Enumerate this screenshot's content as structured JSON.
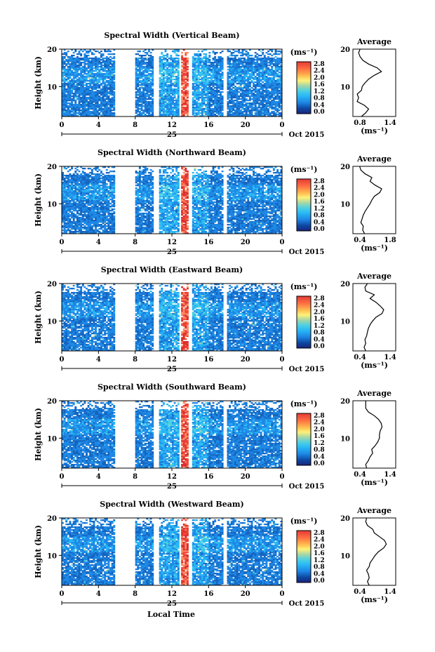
{
  "panels": [
    {
      "title": "Spectral Width (Vertical Beam)",
      "avg_title": "Average",
      "avg_xticks": [
        "0.8",
        "1.4"
      ],
      "avg_xlim": [
        0.8,
        1.4
      ],
      "avg_profile": [
        [
          2,
          0.92
        ],
        [
          3,
          0.98
        ],
        [
          4,
          1.02
        ],
        [
          5,
          0.96
        ],
        [
          6,
          0.86
        ],
        [
          7,
          0.88
        ],
        [
          8,
          0.86
        ],
        [
          9,
          0.92
        ],
        [
          10,
          0.93
        ],
        [
          11,
          0.97
        ],
        [
          12,
          1.02
        ],
        [
          13,
          1.1
        ],
        [
          14,
          1.2
        ],
        [
          15,
          1.14
        ],
        [
          16,
          1.02
        ],
        [
          17,
          0.94
        ],
        [
          18,
          0.9
        ],
        [
          19,
          0.88
        ],
        [
          20,
          0.9
        ]
      ]
    },
    {
      "title": "Spectral Width (Northward Beam)",
      "avg_title": "Average",
      "avg_xticks": [
        "0.4",
        "1.8"
      ],
      "avg_xlim": [
        0.4,
        1.8
      ],
      "avg_profile": [
        [
          2,
          0.78
        ],
        [
          3,
          0.72
        ],
        [
          4,
          0.74
        ],
        [
          5,
          0.66
        ],
        [
          6,
          0.7
        ],
        [
          7,
          0.74
        ],
        [
          8,
          0.8
        ],
        [
          9,
          0.88
        ],
        [
          10,
          0.96
        ],
        [
          11,
          1.02
        ],
        [
          12,
          1.1
        ],
        [
          13,
          1.28
        ],
        [
          14,
          1.34
        ],
        [
          15,
          1.12
        ],
        [
          16,
          0.96
        ],
        [
          17,
          1.02
        ],
        [
          18,
          0.8
        ],
        [
          19,
          0.66
        ],
        [
          20,
          0.62
        ]
      ]
    },
    {
      "title": "Spectral Width (Eastward Beam)",
      "avg_title": "Average",
      "avg_xticks": [
        "0.4",
        "1.4"
      ],
      "avg_xlim": [
        0.4,
        1.4
      ],
      "avg_profile": [
        [
          2,
          0.7
        ],
        [
          3,
          0.66
        ],
        [
          4,
          0.7
        ],
        [
          5,
          0.68
        ],
        [
          6,
          0.72
        ],
        [
          7,
          0.74
        ],
        [
          8,
          0.76
        ],
        [
          9,
          0.8
        ],
        [
          10,
          0.86
        ],
        [
          11,
          0.94
        ],
        [
          12,
          1.08
        ],
        [
          13,
          1.12
        ],
        [
          14,
          1.04
        ],
        [
          15,
          0.94
        ],
        [
          16,
          0.8
        ],
        [
          17,
          0.9
        ],
        [
          18,
          0.7
        ],
        [
          19,
          0.68
        ],
        [
          20,
          0.74
        ]
      ]
    },
    {
      "title": "Spectral Width (Southward Beam)",
      "avg_title": "Average",
      "avg_xticks": [
        "0.4",
        "1.4"
      ],
      "avg_xlim": [
        0.4,
        1.4
      ],
      "avg_profile": [
        [
          2,
          0.72
        ],
        [
          3,
          0.7
        ],
        [
          4,
          0.76
        ],
        [
          5,
          0.8
        ],
        [
          6,
          0.86
        ],
        [
          7,
          0.84
        ],
        [
          8,
          0.92
        ],
        [
          9,
          0.98
        ],
        [
          10,
          1.02
        ],
        [
          11,
          1.02
        ],
        [
          12,
          1.04
        ],
        [
          13,
          1.08
        ],
        [
          14,
          1.06
        ],
        [
          15,
          1.0
        ],
        [
          16,
          0.9
        ],
        [
          17,
          0.76
        ],
        [
          18,
          0.7
        ],
        [
          19,
          0.7
        ],
        [
          20,
          0.7
        ]
      ]
    },
    {
      "title": "Spectral Width (Westward Beam)",
      "avg_title": "Average",
      "avg_xticks": [
        "0.4",
        "1.4"
      ],
      "avg_xlim": [
        0.4,
        1.4
      ],
      "avg_profile": [
        [
          2,
          0.78
        ],
        [
          3,
          0.74
        ],
        [
          4,
          0.78
        ],
        [
          5,
          0.76
        ],
        [
          6,
          0.72
        ],
        [
          7,
          0.78
        ],
        [
          8,
          0.8
        ],
        [
          9,
          0.86
        ],
        [
          10,
          0.92
        ],
        [
          11,
          1.0
        ],
        [
          12,
          1.12
        ],
        [
          13,
          1.18
        ],
        [
          14,
          1.14
        ],
        [
          15,
          1.02
        ],
        [
          16,
          0.9
        ],
        [
          17,
          0.86
        ],
        [
          18,
          0.74
        ],
        [
          19,
          0.7
        ],
        [
          20,
          0.72
        ]
      ]
    }
  ],
  "shared": {
    "ylabel": "Height (km)",
    "yticks": [
      "20",
      "10"
    ],
    "ylim_km": [
      2,
      20
    ],
    "xticks": [
      "0",
      "4",
      "8",
      "12",
      "16",
      "20",
      "0"
    ],
    "xlim_hours": [
      0,
      24
    ],
    "day_label": "25",
    "date_label": "Oct 2015",
    "xlabel": "Local Time",
    "avg_xlabel": "(ms⁻¹)",
    "colorbar_unit": "(ms⁻¹)",
    "colorbar_ticks": [
      "2.8",
      "2.4",
      "2.0",
      "1.6",
      "1.2",
      "0.8",
      "0.4",
      "0.0"
    ],
    "colormap": [
      "#1a237e",
      "#0d47a1",
      "#1565c0",
      "#1e88e5",
      "#29b6f6",
      "#4dd0e1",
      "#80deea",
      "#a5d6a7",
      "#c5e1a5",
      "#fff176",
      "#ffd54f",
      "#ffb74d",
      "#ff8a65",
      "#f44336",
      "#d32f2f"
    ],
    "data_gaps_hours": [
      [
        5.8,
        8.0
      ],
      [
        10.0,
        10.5
      ],
      [
        12.8,
        13.0
      ],
      [
        13.8,
        14.2
      ],
      [
        17.6,
        17.9
      ]
    ]
  },
  "chart_data": {
    "type": "heatmap",
    "title": "Spectral Width",
    "xlabel": "Local Time",
    "ylabel": "Height (km)",
    "x_range_hours": [
      0,
      24
    ],
    "y_range_km": [
      2,
      20
    ],
    "color_range_ms": [
      0.0,
      2.8
    ],
    "date": "Oct 2015",
    "series": [
      {
        "name": "Vertical Beam",
        "avg_profile_ref": "panels.0.avg_profile"
      },
      {
        "name": "Northward Beam",
        "avg_profile_ref": "panels.1.avg_profile"
      },
      {
        "name": "Eastward Beam",
        "avg_profile_ref": "panels.2.avg_profile"
      },
      {
        "name": "Southward Beam",
        "avg_profile_ref": "panels.3.avg_profile"
      },
      {
        "name": "Westward Beam",
        "avg_profile_ref": "panels.4.avg_profile"
      }
    ]
  }
}
